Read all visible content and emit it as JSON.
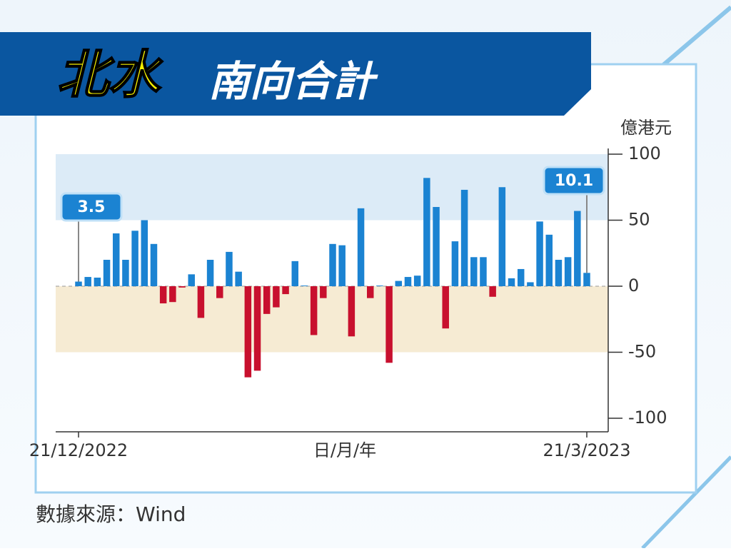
{
  "chart_data": {
    "type": "bar",
    "title_parts": [
      "北水",
      "南向合計"
    ],
    "unit": "億港元",
    "x_label": "日/月/年",
    "source": "數據來源：Wind",
    "categories": [
      "21/12/2022",
      null,
      null,
      null,
      null,
      null,
      null,
      null,
      null,
      null,
      null,
      null,
      null,
      null,
      null,
      null,
      null,
      null,
      null,
      null,
      null,
      null,
      null,
      null,
      null,
      null,
      null,
      null,
      null,
      null,
      null,
      null,
      null,
      null,
      null,
      null,
      null,
      null,
      null,
      null,
      null,
      null,
      null,
      null,
      null,
      null,
      null,
      null,
      null,
      null,
      null,
      null,
      null,
      null,
      "21/3/2023"
    ],
    "values": [
      3.5,
      7,
      6.5,
      20,
      40,
      20,
      42,
      50,
      32,
      -13,
      -12,
      -1,
      9,
      -24,
      20,
      -9,
      26,
      11,
      -69,
      -64,
      -21,
      -16,
      -6,
      19,
      0.5,
      -37,
      -9,
      32,
      31,
      -38,
      59,
      -9,
      0.5,
      -58,
      4,
      7,
      8,
      82,
      60,
      -32,
      34,
      73,
      22,
      22,
      -8,
      75,
      6,
      13,
      3,
      49,
      39,
      20,
      22,
      57,
      10.1
    ],
    "color": "#1b83d2",
    "negative_color": "#c8102e",
    "labeled": [
      0,
      54
    ],
    "ylim": [
      -110,
      110
    ],
    "yticks": [
      100,
      50,
      0,
      -50,
      -100
    ],
    "bands": [
      {
        "from": 50,
        "to": 100,
        "color": "#dcebf7"
      },
      {
        "from": -50,
        "to": 0,
        "color": "#f6ebd3"
      }
    ]
  }
}
